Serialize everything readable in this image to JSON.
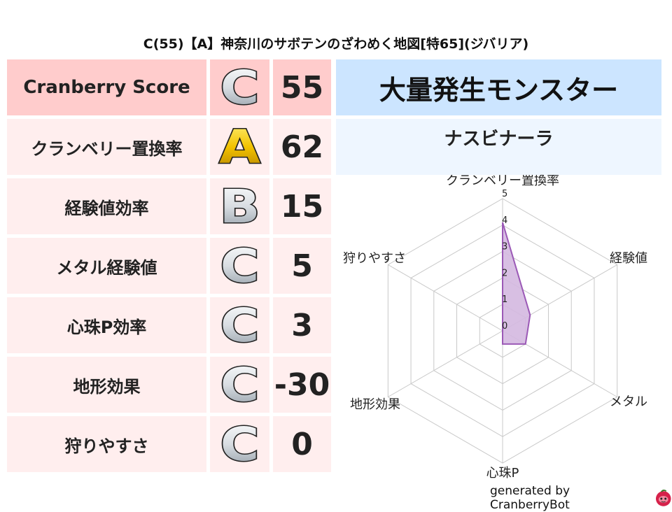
{
  "title": "C(55)【A】神奈川のサボテンのざわめく地図[特65](ジバリア)",
  "rows": [
    {
      "label": "Cranberry Score",
      "grade": "C",
      "score": "55"
    },
    {
      "label": "クランベリー置換率",
      "grade": "A",
      "score": "62"
    },
    {
      "label": "経験値効率",
      "grade": "B",
      "score": "15"
    },
    {
      "label": "メタル経験値",
      "grade": "C",
      "score": "5"
    },
    {
      "label": "心珠P効率",
      "grade": "C",
      "score": "3"
    },
    {
      "label": "地形効果",
      "grade": "C",
      "score": "-30"
    },
    {
      "label": "狩りやすさ",
      "grade": "C",
      "score": "0"
    }
  ],
  "monster": {
    "header": "大量発生モンスター",
    "name": "ナスビナーラ"
  },
  "footer": {
    "text": "generated by CranberryBot",
    "icon": "cranberry-mascot-icon"
  },
  "colors": {
    "header_row": "#ffcccc",
    "row": "#ffeeee",
    "monster_header": "#cce5ff",
    "monster_name": "#eef6ff",
    "series_fill": "#d4b8e0",
    "series_line": "#9b59b6",
    "grade_gold": "#f2c200",
    "grade_silver": "#d8dde2"
  },
  "chart_data": {
    "type": "radar",
    "axes": [
      "クランベリー置換率",
      "経験値",
      "メタル",
      "心珠P",
      "地形効果",
      "狩りやすさ"
    ],
    "values": [
      4.1,
      1.2,
      1.0,
      0.5,
      0,
      0
    ],
    "range": [
      0,
      5
    ],
    "tick_labels": [
      "0",
      "1",
      "2",
      "3",
      "4",
      "5"
    ],
    "grid": true
  }
}
